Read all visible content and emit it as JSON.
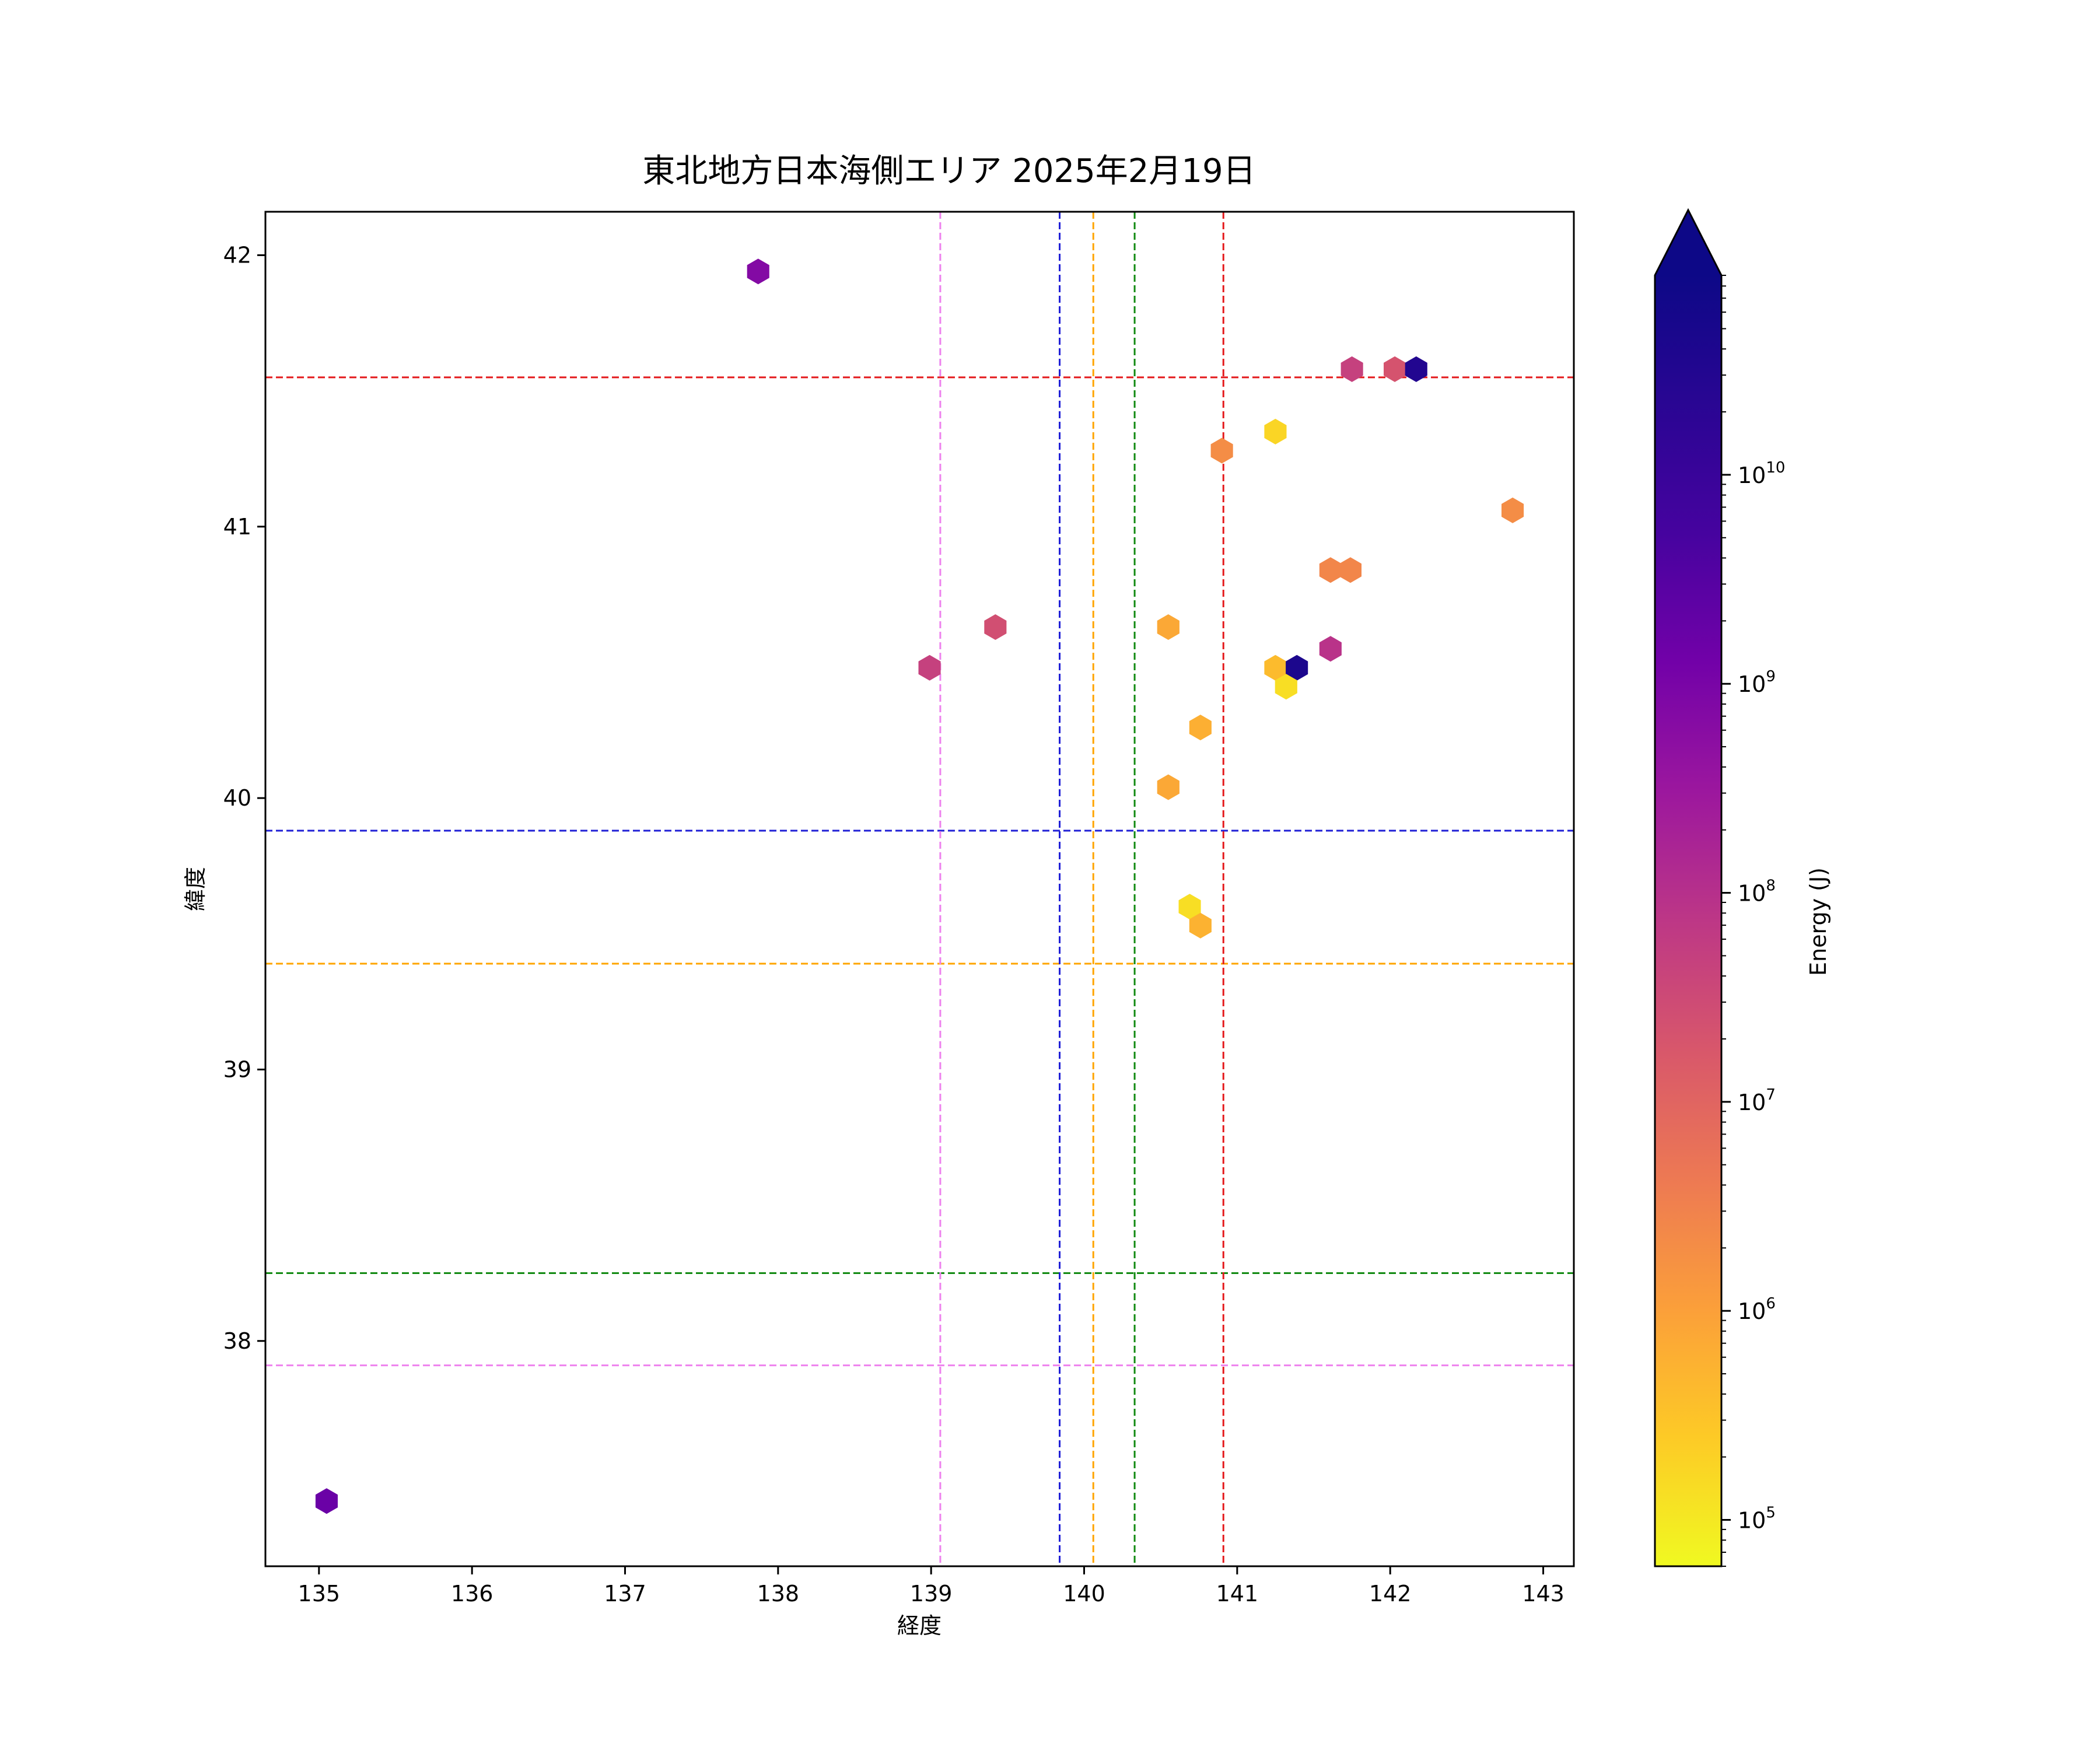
{
  "chart_data": {
    "type": "scatter",
    "marker": "hexagon",
    "title": "東北地方日本海側エリア 2025年2月19日",
    "xlabel": "経度",
    "ylabel": "緯度",
    "xlim": [
      134.65,
      143.2
    ],
    "ylim": [
      37.17,
      42.16
    ],
    "xticks": [
      "135",
      "136",
      "137",
      "138",
      "139",
      "140",
      "141",
      "142",
      "143"
    ],
    "yticks": [
      "38",
      "39",
      "40",
      "41",
      "42"
    ],
    "grid": false,
    "colorbar": {
      "label": "Energy (J)",
      "scale": "log",
      "colormap": "plasma_r",
      "range": [
        60000,
        90000000000
      ],
      "extend": "max",
      "ticks": [
        "10^5",
        "10^6",
        "10^7",
        "10^8",
        "10^9",
        "10^10"
      ]
    },
    "reference_lines": [
      {
        "orientation": "horizontal",
        "value": 41.55,
        "color": "#e41a1c"
      },
      {
        "orientation": "horizontal",
        "value": 39.88,
        "color": "#1f1fd6"
      },
      {
        "orientation": "horizontal",
        "value": 39.39,
        "color": "#ffa500"
      },
      {
        "orientation": "horizontal",
        "value": 38.25,
        "color": "#138a13"
      },
      {
        "orientation": "horizontal",
        "value": 37.91,
        "color": "#ee82ee"
      },
      {
        "orientation": "vertical",
        "value": 139.06,
        "color": "#ee82ee"
      },
      {
        "orientation": "vertical",
        "value": 139.84,
        "color": "#1f1fd6"
      },
      {
        "orientation": "vertical",
        "value": 140.06,
        "color": "#ffa500"
      },
      {
        "orientation": "vertical",
        "value": 140.33,
        "color": "#138a13"
      },
      {
        "orientation": "vertical",
        "value": 140.91,
        "color": "#e41a1c"
      }
    ],
    "points": [
      {
        "x": 137.87,
        "y": 41.94,
        "energy": 2000000000
      },
      {
        "x": 135.05,
        "y": 37.41,
        "energy": 5000000000
      },
      {
        "x": 141.75,
        "y": 41.58,
        "energy": 100000000
      },
      {
        "x": 142.03,
        "y": 41.58,
        "energy": 40000000
      },
      {
        "x": 142.17,
        "y": 41.58,
        "energy": 50000000000
      },
      {
        "x": 141.25,
        "y": 41.35,
        "energy": 200000
      },
      {
        "x": 140.9,
        "y": 41.28,
        "energy": 3000000
      },
      {
        "x": 142.8,
        "y": 41.06,
        "energy": 3000000
      },
      {
        "x": 141.61,
        "y": 40.84,
        "energy": 4000000
      },
      {
        "x": 141.74,
        "y": 40.84,
        "energy": 4000000
      },
      {
        "x": 139.42,
        "y": 40.63,
        "energy": 50000000
      },
      {
        "x": 138.99,
        "y": 40.48,
        "energy": 100000000
      },
      {
        "x": 140.55,
        "y": 40.63,
        "energy": 1000000
      },
      {
        "x": 141.61,
        "y": 40.55,
        "energy": 200000000
      },
      {
        "x": 141.25,
        "y": 40.48,
        "energy": 500000
      },
      {
        "x": 141.39,
        "y": 40.48,
        "energy": 60000000000
      },
      {
        "x": 141.32,
        "y": 40.41,
        "energy": 150000
      },
      {
        "x": 140.76,
        "y": 40.26,
        "energy": 800000
      },
      {
        "x": 140.55,
        "y": 40.04,
        "energy": 1000000
      },
      {
        "x": 140.69,
        "y": 39.6,
        "energy": 150000
      },
      {
        "x": 140.76,
        "y": 39.53,
        "energy": 700000
      }
    ]
  }
}
